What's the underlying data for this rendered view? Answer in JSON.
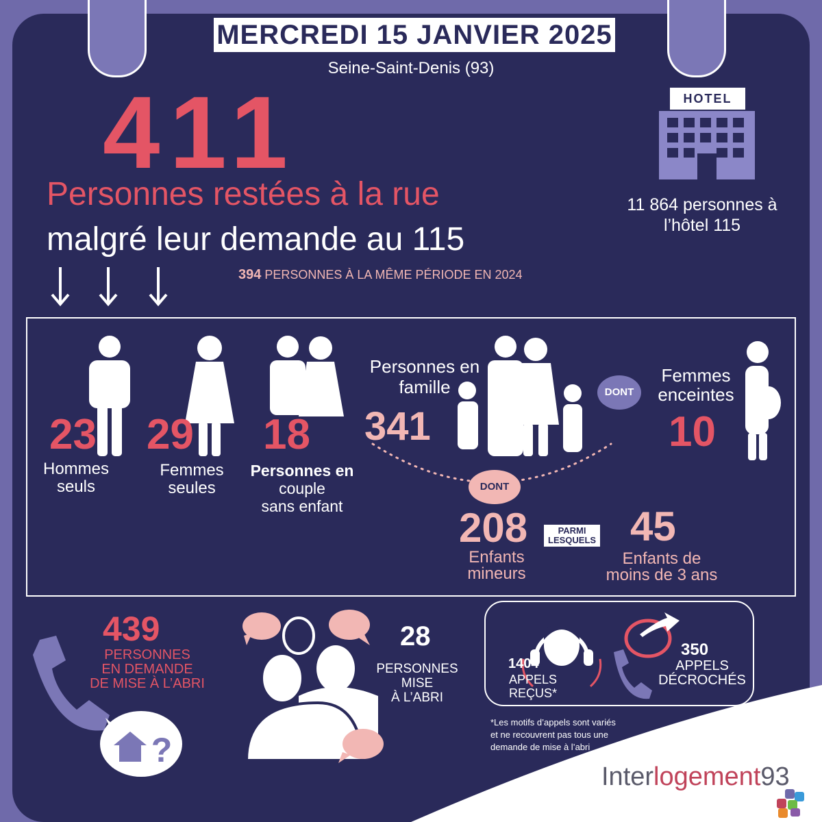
{
  "header": {
    "date": "MERCREDI 15 JANVIER 2025",
    "location": "Seine-Saint-Denis (93)"
  },
  "main": {
    "number": "411",
    "line1": "Personnes restées à la rue",
    "line2": "malgré leur demande au 115",
    "comparison_number": "394",
    "comparison_text": "PERSONNES À LA MÊME PÉRIODE EN 2024"
  },
  "hotel": {
    "sign": "HOTEL",
    "text_line1": "11 864 personnes à",
    "text_line2": "l’hôtel 115"
  },
  "breakdown": {
    "men": {
      "value": "23",
      "line1": "Hommes",
      "line2": "seuls"
    },
    "women": {
      "value": "29",
      "line1": "Femmes",
      "line2": "seules"
    },
    "couples": {
      "value": "18",
      "line1": "Personnes en",
      "line2": "couple",
      "line3": "sans enfant"
    },
    "family": {
      "label_line1": "Personnes en",
      "label_line2": "famille",
      "value": "341"
    },
    "dont_label": "DONT",
    "pregnant": {
      "line1": "Femmes",
      "line2": "enceintes",
      "value": "10"
    },
    "dont_label2": "DONT",
    "minors": {
      "value": "208",
      "line1": "Enfants",
      "line2": "mineurs"
    },
    "parmi_line1": "PARMI",
    "parmi_line2": "LESQUELS",
    "under3": {
      "value": "45",
      "line1": "Enfants de",
      "line2": "moins de 3 ans"
    }
  },
  "calls": {
    "demand_value": "439",
    "demand_line1": "PERSONNES",
    "demand_line2": "EN DEMANDE",
    "demand_line3": "DE MISE À L’ABRI",
    "sheltered_value": "28",
    "sheltered_line1": "PERSONNES",
    "sheltered_line2": "MISE",
    "sheltered_line3": "À L’ABRI",
    "received_value": "1404",
    "received_line1": "APPELS",
    "received_line2": "REÇUS*",
    "answered_value": "350",
    "answered_line1": "APPELS",
    "answered_line2": "DÉCROCHÉS",
    "footnote_line1": "*Les motifs d’appels sont variés",
    "footnote_line2": "et ne recouvrent pas tous une",
    "footnote_line3": "demande de mise à l’abri"
  },
  "brand": {
    "part1": "Inter",
    "part2": "logement",
    "part3": "93"
  },
  "colors": {
    "panel": "#2a2a5a",
    "frame": "#6f6aaa",
    "accent_red": "#e45565",
    "accent_pink": "#f2b7b4",
    "violet": "#7b77b6"
  },
  "icons": [
    "hotel-icon",
    "man-icon",
    "woman-icon",
    "couple-icon",
    "family-icon",
    "pregnant-woman-icon",
    "phone-icon",
    "house-question-icon",
    "group-icon",
    "headset-operator-icon",
    "phone-callback-icon",
    "down-arrow-icon"
  ]
}
